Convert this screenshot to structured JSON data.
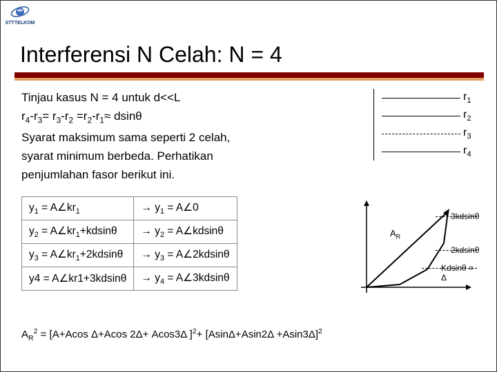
{
  "logo_text": "STTTELKOM",
  "title": "Interferensi N Celah: N = 4",
  "body_lines": {
    "l1": "Tinjau kasus N = 4 untuk d<<L",
    "l2_html": "r<sub>4</sub>-r<sub>3</sub>= r<sub>3</sub>-r<sub>2</sub> =r<sub>2</sub>-r<sub>1</sub>≈ dsinθ",
    "l3": "Syarat maksimum sama seperti 2 celah,",
    "l4": "syarat minimum berbeda. Perhatikan",
    "l5": "penjumlahan fasor berikut ini."
  },
  "r_labels": [
    "r₁",
    "r₂",
    "r₃",
    "r₄"
  ],
  "r_dashed_index": 2,
  "table_rows": [
    {
      "left_html": "y<sub>1</sub> = A∠kr<sub>1</sub>",
      "right_html": "→ y<sub>1</sub> = A∠0"
    },
    {
      "left_html": "y<sub>2</sub> = A∠kr<sub>1</sub>+kdsinθ",
      "right_html": "→ y<sub>2</sub> = A∠kdsinθ"
    },
    {
      "left_html": "y<sub>3</sub> = A∠kr<sub>1</sub>+2kdsinθ",
      "right_html": "→ y<sub>3</sub> = A∠2kdsinθ"
    },
    {
      "left_html": "y4 = A∠kr1+3kdsinθ",
      "right_html": "→ y<sub>4</sub> = A∠3kdsinθ"
    }
  ],
  "graph": {
    "ar_label": "A_R",
    "labels": [
      "3kdsinθ",
      "2kdsinθ",
      "Kdsinθ = Δ"
    ],
    "colors": {
      "axis": "#000000",
      "vectors": "#000000",
      "ar": "#000000"
    }
  },
  "final_html": "A<sub>R</sub><sup>2</sup> = [A+Acos Δ+Acos 2Δ+ Acos3Δ ]<sup>2</sup>+ [AsinΔ+Asin2Δ +Asin3Δ]<sup>2</sup>",
  "colors": {
    "rule_dark": "#800000",
    "rule_light": "#e0a060",
    "border": "#888888"
  }
}
